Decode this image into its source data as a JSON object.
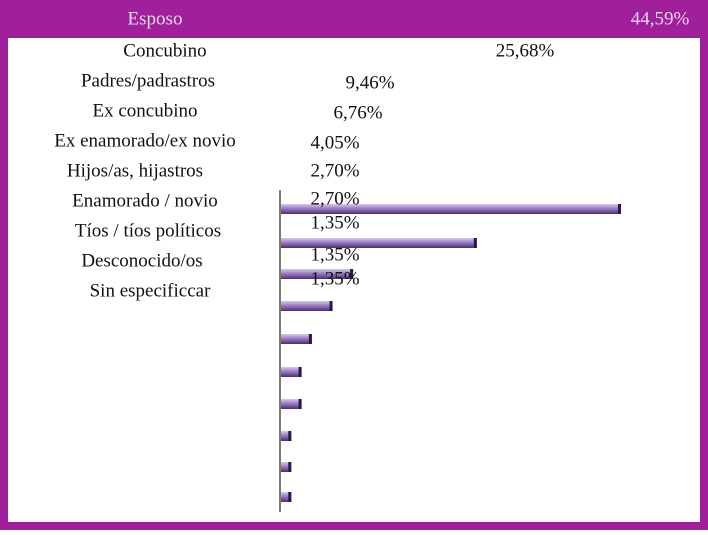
{
  "chart_data": {
    "type": "bar",
    "orientation": "horizontal",
    "categories": [
      "Esposo",
      "Concubino",
      "Padres/padrastros",
      "Ex concubino",
      "Ex enamorado/ex novio",
      "Hijos/as, hijastros",
      "Enamorado / novio",
      "Tíos / tíos políticos",
      "Desconocido/os",
      "Sin especificcar"
    ],
    "values": [
      44.59,
      25.68,
      9.46,
      6.76,
      4.05,
      2.7,
      2.7,
      1.35,
      1.35,
      1.35
    ],
    "value_labels": [
      "44,59%",
      "25,68%",
      "9,46%",
      "6,76%",
      "4,05%",
      "2,70%",
      "2,70%",
      "1,35%",
      "1,35%",
      "1,35%"
    ],
    "color": "#9a7cc4"
  }
}
